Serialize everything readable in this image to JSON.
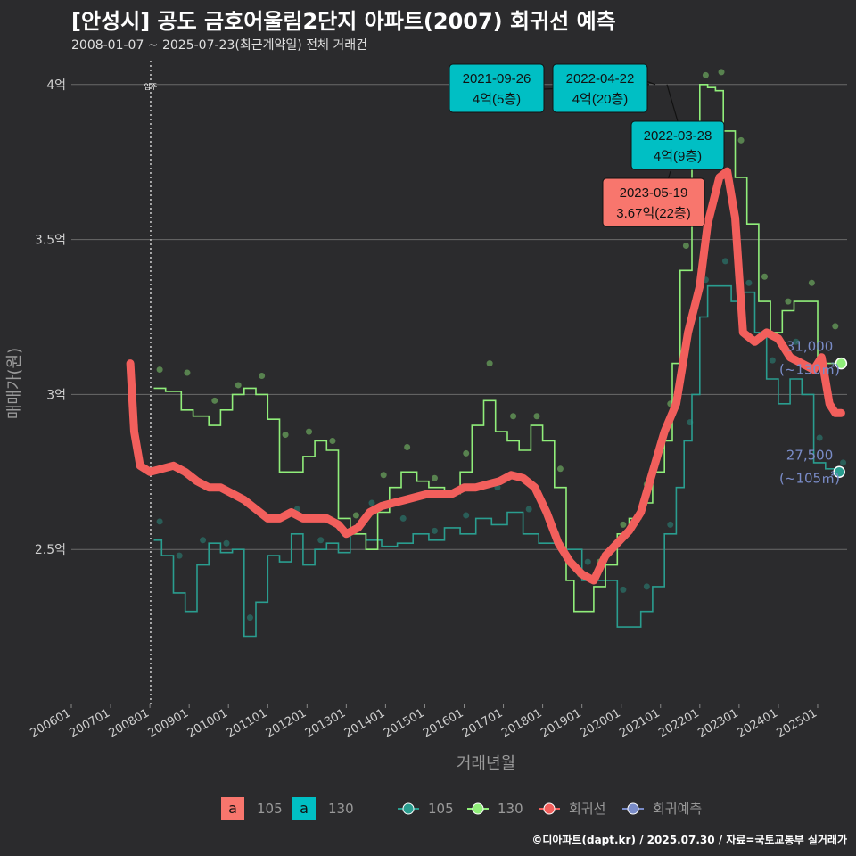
{
  "title": "[안성시] 공도 금호어울림2단지 아파트(2007) 회귀선 예측",
  "subtitle": "2008-01-07 ~ 2025-07-23(최근계약일) 전체 거래건",
  "footer": "©디아파트(dapt.kr) / 2025.07.30 / 자료=국토교통부 실거래가",
  "colors": {
    "background": "#2b2b2d",
    "grid": "#6a6a6a",
    "type105": "#f8766d",
    "type130": "#00bfc4",
    "series105": "#2a9d8f",
    "series130": "#90ee7a",
    "regression": "#f25f5c",
    "forecast": "#7a8cc8"
  },
  "chart_data": {
    "type": "line",
    "title": "[안성시] 공도 금호어울림2단지 아파트(2007) 회귀선 예측",
    "xlabel": "거래년월",
    "ylabel": "매매가(원)",
    "ylim": [
      2.0,
      4.1
    ],
    "xlim": [
      2006.0,
      2025.75
    ],
    "ytick_values": [
      2.5,
      3.0,
      3.5,
      4.0
    ],
    "ytick_labels": [
      "2.5억",
      "3억",
      "3.5억",
      "4억"
    ],
    "xtick_values": [
      2006,
      2007,
      2008,
      2009,
      2010,
      2011,
      2012,
      2013,
      2014,
      2015,
      2016,
      2017,
      2018,
      2019,
      2020,
      2021,
      2022,
      2023,
      2024,
      2025
    ],
    "xtick_labels": [
      "200601",
      "200701",
      "200801",
      "200901",
      "201001",
      "201101",
      "201201",
      "201301",
      "201401",
      "201501",
      "201601",
      "201701",
      "201801",
      "201901",
      "202001",
      "202101",
      "202201",
      "202301",
      "202401",
      "202501"
    ],
    "reference_line": {
      "x": 2008.02,
      "label": "입주"
    },
    "series": [
      {
        "name": "105",
        "x": [
          2008.1,
          2008.3,
          2008.6,
          2008.9,
          2009.2,
          2009.5,
          2009.8,
          2010.1,
          2010.4,
          2010.7,
          2011.0,
          2011.3,
          2011.6,
          2011.9,
          2012.2,
          2012.5,
          2012.8,
          2013.1,
          2013.5,
          2013.9,
          2014.3,
          2014.7,
          2015.1,
          2015.5,
          2015.9,
          2016.3,
          2016.7,
          2017.1,
          2017.5,
          2017.9,
          2018.2,
          2018.5,
          2019.0,
          2019.5,
          2019.9,
          2020.2,
          2020.5,
          2020.8,
          2021.1,
          2021.4,
          2021.6,
          2021.8,
          2022.0,
          2022.2,
          2022.5,
          2022.8,
          2023.1,
          2023.4,
          2023.7,
          2024.0,
          2024.3,
          2024.6,
          2024.9,
          2025.2,
          2025.5
        ],
        "values": [
          2.53,
          2.48,
          2.36,
          2.3,
          2.45,
          2.52,
          2.49,
          2.5,
          2.22,
          2.33,
          2.48,
          2.46,
          2.55,
          2.45,
          2.5,
          2.52,
          2.49,
          2.55,
          2.53,
          2.51,
          2.52,
          2.55,
          2.53,
          2.57,
          2.55,
          2.6,
          2.58,
          2.62,
          2.55,
          2.52,
          2.52,
          2.5,
          2.4,
          2.4,
          2.25,
          2.25,
          2.3,
          2.38,
          2.55,
          2.7,
          2.85,
          3.0,
          3.25,
          3.35,
          3.35,
          3.3,
          3.33,
          3.2,
          3.05,
          2.97,
          3.05,
          3.0,
          2.78,
          2.76,
          2.75
        ]
      },
      {
        "name": "130",
        "x": [
          2008.1,
          2008.4,
          2008.8,
          2009.1,
          2009.5,
          2009.8,
          2010.1,
          2010.4,
          2010.7,
          2011.0,
          2011.3,
          2011.6,
          2011.9,
          2012.2,
          2012.5,
          2012.8,
          2013.1,
          2013.5,
          2013.8,
          2014.1,
          2014.4,
          2014.8,
          2015.1,
          2015.5,
          2015.9,
          2016.2,
          2016.5,
          2016.8,
          2017.1,
          2017.4,
          2017.7,
          2018.0,
          2018.3,
          2018.6,
          2018.8,
          2019.0,
          2019.3,
          2019.6,
          2019.9,
          2020.2,
          2020.5,
          2020.8,
          2021.1,
          2021.3,
          2021.5,
          2021.8,
          2022.0,
          2022.2,
          2022.4,
          2022.6,
          2022.9,
          2023.2,
          2023.5,
          2023.8,
          2024.1,
          2024.4,
          2024.7,
          2025.0,
          2025.3,
          2025.55
        ],
        "values": [
          3.02,
          3.01,
          2.95,
          2.93,
          2.9,
          2.95,
          3.0,
          3.02,
          3.0,
          2.92,
          2.75,
          2.75,
          2.8,
          2.85,
          2.82,
          2.6,
          2.55,
          2.5,
          2.62,
          2.7,
          2.75,
          2.72,
          2.7,
          2.68,
          2.75,
          2.9,
          2.98,
          2.88,
          2.85,
          2.82,
          2.9,
          2.85,
          2.7,
          2.4,
          2.3,
          2.3,
          2.38,
          2.45,
          2.55,
          2.6,
          2.65,
          2.75,
          2.85,
          3.1,
          3.4,
          3.8,
          4.0,
          3.99,
          3.98,
          3.85,
          3.7,
          3.55,
          3.3,
          3.2,
          3.27,
          3.3,
          3.3,
          3.1,
          3.1,
          3.1
        ]
      },
      {
        "name": "회귀선",
        "x": [
          2007.5,
          2007.6,
          2007.75,
          2008.0,
          2008.3,
          2008.6,
          2008.9,
          2009.2,
          2009.5,
          2009.8,
          2010.1,
          2010.4,
          2010.7,
          2011.0,
          2011.3,
          2011.6,
          2011.9,
          2012.2,
          2012.5,
          2012.8,
          2013.0,
          2013.3,
          2013.6,
          2013.9,
          2014.2,
          2014.5,
          2014.8,
          2015.1,
          2015.4,
          2015.7,
          2016.0,
          2016.3,
          2016.6,
          2016.9,
          2017.2,
          2017.5,
          2017.8,
          2018.1,
          2018.4,
          2018.7,
          2019.0,
          2019.3,
          2019.6,
          2019.9,
          2020.2,
          2020.5,
          2020.8,
          2021.1,
          2021.4,
          2021.7,
          2022.0,
          2022.2,
          2022.5,
          2022.7,
          2022.9,
          2023.1,
          2023.4,
          2023.7,
          2024.0,
          2024.3,
          2024.6,
          2024.9,
          2025.1,
          2025.3,
          2025.45,
          2025.6
        ],
        "values": [
          3.1,
          2.88,
          2.77,
          2.75,
          2.76,
          2.77,
          2.75,
          2.72,
          2.7,
          2.7,
          2.68,
          2.66,
          2.63,
          2.6,
          2.6,
          2.62,
          2.6,
          2.6,
          2.6,
          2.58,
          2.55,
          2.57,
          2.62,
          2.64,
          2.65,
          2.66,
          2.67,
          2.68,
          2.68,
          2.68,
          2.7,
          2.7,
          2.71,
          2.72,
          2.74,
          2.73,
          2.7,
          2.62,
          2.52,
          2.46,
          2.42,
          2.4,
          2.48,
          2.52,
          2.56,
          2.62,
          2.75,
          2.88,
          2.97,
          3.2,
          3.35,
          3.55,
          3.7,
          3.72,
          3.57,
          3.2,
          3.17,
          3.2,
          3.18,
          3.12,
          3.1,
          3.08,
          3.12,
          2.97,
          2.94,
          2.94
        ]
      },
      {
        "name": "회귀예측",
        "x": [
          2025.55,
          2025.6
        ],
        "values": [
          2.75,
          3.1
        ]
      }
    ],
    "annotations": [
      {
        "date": "2021-09-26",
        "value": "4억(5층)",
        "type": "130"
      },
      {
        "date": "2022-04-22",
        "value": "4억(20층)",
        "type": "130"
      },
      {
        "date": "2022-03-28",
        "value": "4억(9층)",
        "type": "130"
      },
      {
        "date": "2023-05-19",
        "value": "3.67억(22층)",
        "type": "105"
      }
    ],
    "end_labels": [
      {
        "price": "31,000",
        "area": "(~130㎡)",
        "value": 3.1
      },
      {
        "price": "27,500",
        "area": "(~105㎡)",
        "value": 2.75
      }
    ],
    "legend": {
      "fill_title_a": "a",
      "fill_items": [
        "105",
        "130"
      ],
      "line_items": [
        "105",
        "130",
        "회귀선",
        "회귀예측"
      ],
      "position": "bottom"
    }
  }
}
